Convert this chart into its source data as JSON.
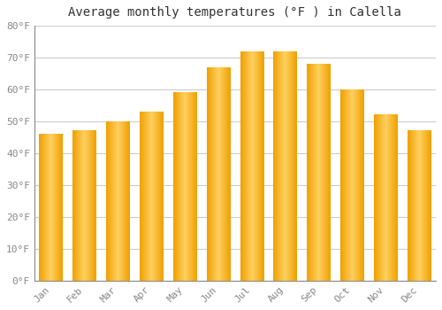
{
  "title": "Average monthly temperatures (°F ) in Calella",
  "months": [
    "Jan",
    "Feb",
    "Mar",
    "Apr",
    "May",
    "Jun",
    "Jul",
    "Aug",
    "Sep",
    "Oct",
    "Nov",
    "Dec"
  ],
  "values": [
    46,
    47,
    50,
    53,
    59,
    67,
    72,
    72,
    68,
    60,
    52,
    47
  ],
  "bar_color_dark": "#F0A000",
  "bar_color_light": "#FFD060",
  "ylim": [
    0,
    80
  ],
  "yticks": [
    0,
    10,
    20,
    30,
    40,
    50,
    60,
    70,
    80
  ],
  "ytick_labels": [
    "0°F",
    "10°F",
    "20°F",
    "30°F",
    "40°F",
    "50°F",
    "60°F",
    "70°F",
    "80°F"
  ],
  "bg_color": "#FFFFFF",
  "grid_color": "#CCCCCC",
  "title_fontsize": 10,
  "tick_fontsize": 8,
  "tick_color": "#888888",
  "bar_width": 0.7
}
